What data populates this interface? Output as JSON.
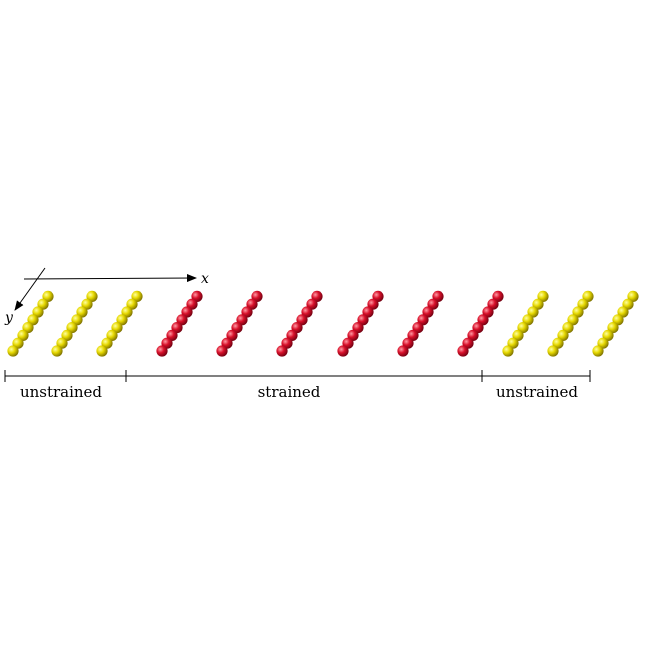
{
  "axes": {
    "x_label": "x",
    "y_label": "y"
  },
  "colors": {
    "unstrained": "#e6d800",
    "unstrained_highlight": "#ffffa0",
    "unstrained_shadow": "#7a6e00",
    "strained": "#d8102a",
    "strained_highlight": "#ff9aa4",
    "strained_shadow": "#6e0010",
    "line": "#000000"
  },
  "chains": [
    {
      "region": "unstrained"
    },
    {
      "region": "unstrained"
    },
    {
      "region": "unstrained"
    },
    {
      "region": "strained"
    },
    {
      "region": "strained"
    },
    {
      "region": "strained"
    },
    {
      "region": "strained"
    },
    {
      "region": "strained"
    },
    {
      "region": "strained"
    },
    {
      "region": "unstrained"
    },
    {
      "region": "unstrained"
    },
    {
      "region": "unstrained"
    }
  ],
  "atoms_per_chain": 8,
  "regions": [
    {
      "label": "unstrained"
    },
    {
      "label": "strained"
    },
    {
      "label": "unstrained"
    }
  ]
}
